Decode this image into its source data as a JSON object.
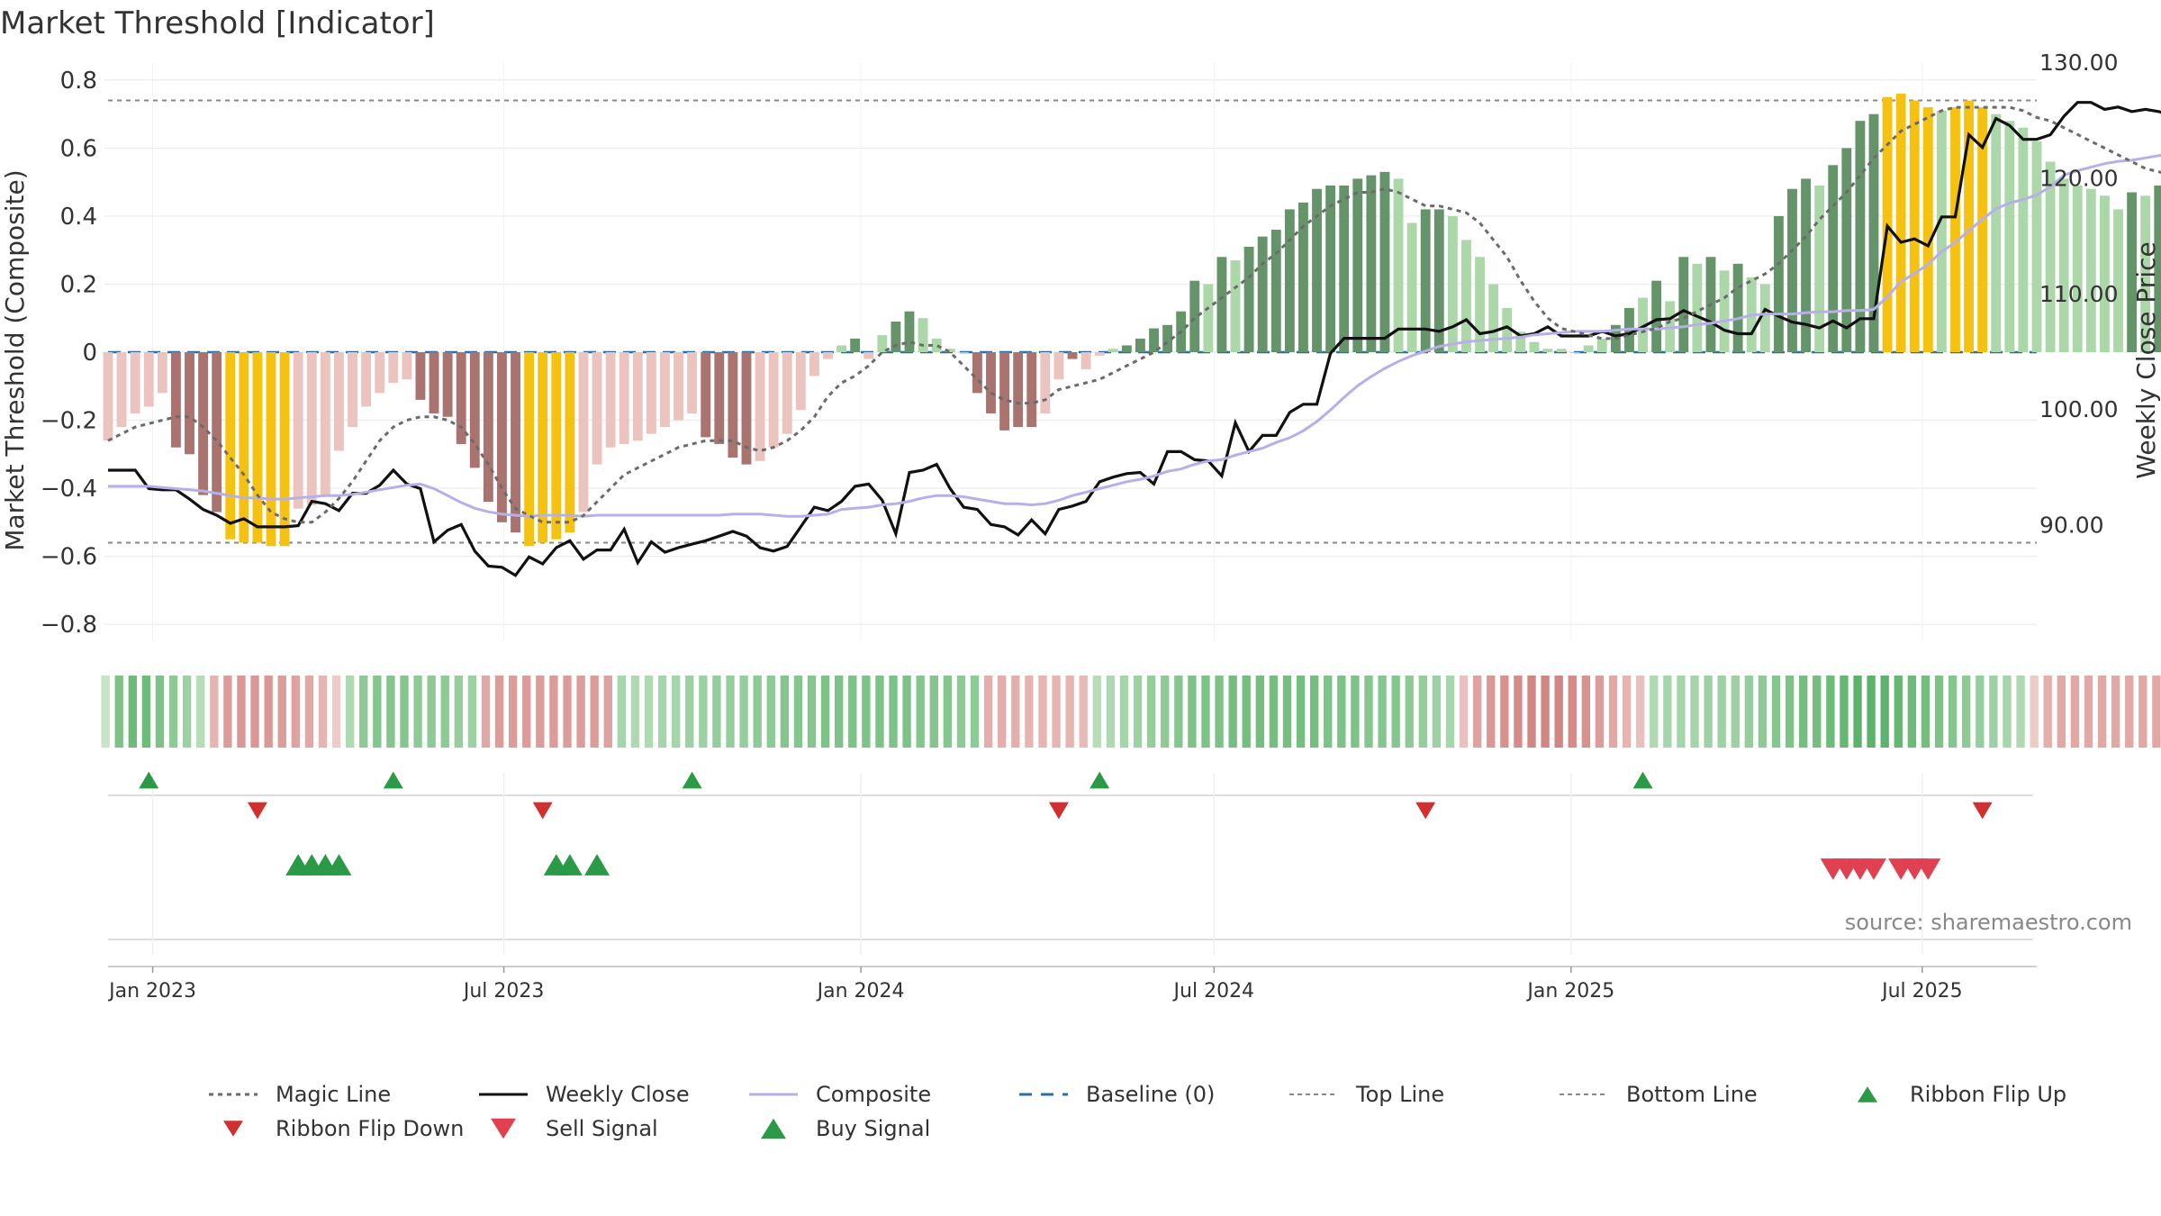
{
  "title": "Market Threshold [Indicator]",
  "source": "source: sharemaestro.com",
  "colors": {
    "bar_red_dark": "#a97370",
    "bar_red_light": "#ebc3bf",
    "bar_green_dark": "#66946a",
    "bar_green_light": "#acd7a9",
    "bar_gold": "#f5c211",
    "close": "#111111",
    "composite": "#b7b0e8",
    "magic": "#6b6b6b",
    "baseline": "#2c6fa4",
    "ref_line": "#888888",
    "up_marker": "#2a9a46",
    "down_marker": "#d03030"
  },
  "chart_data": {
    "type": "bar",
    "title": "Market Threshold [Indicator]",
    "ylabel_left": "Market Threshold (Composite)",
    "ylabel_right": "Weekly Close Price",
    "ylim_left": [
      -0.85,
      0.85
    ],
    "ylim_right": [
      80,
      130
    ],
    "yticks_left": [
      "0.8",
      "0.6",
      "0.4",
      "0.2",
      "0",
      "−0.2",
      "−0.4",
      "−0.6",
      "−0.8"
    ],
    "yticks_right": [
      "130.00",
      "120.00",
      "110.00",
      "100.00",
      "90.00"
    ],
    "x_start": "2022-12-09",
    "x_end": "2025-08-29",
    "xticks": [
      {
        "date": "2023-01-01",
        "label": "Jan 2023"
      },
      {
        "date": "2023-07-01",
        "label": "Jul 2023"
      },
      {
        "date": "2024-01-01",
        "label": "Jan 2024"
      },
      {
        "date": "2024-07-01",
        "label": "Jul 2024"
      },
      {
        "date": "2025-01-01",
        "label": "Jan 2025"
      },
      {
        "date": "2025-07-01",
        "label": "Jul 2025"
      }
    ],
    "top_line": 0.74,
    "bottom_line": -0.56,
    "bars": {
      "values": [
        -0.26,
        -0.22,
        -0.18,
        -0.16,
        -0.12,
        -0.28,
        -0.3,
        -0.42,
        -0.47,
        -0.55,
        -0.56,
        -0.56,
        -0.57,
        -0.57,
        -0.46,
        -0.45,
        -0.42,
        -0.29,
        -0.22,
        -0.16,
        -0.12,
        -0.09,
        -0.08,
        -0.14,
        -0.18,
        -0.19,
        -0.27,
        -0.34,
        -0.44,
        -0.5,
        -0.53,
        -0.57,
        -0.56,
        -0.55,
        -0.53,
        -0.47,
        -0.33,
        -0.28,
        -0.27,
        -0.26,
        -0.24,
        -0.22,
        -0.2,
        -0.18,
        -0.25,
        -0.27,
        -0.31,
        -0.33,
        -0.32,
        -0.28,
        -0.24,
        -0.17,
        -0.07,
        -0.02,
        0.02,
        0.04,
        -0.02,
        0.05,
        0.09,
        0.12,
        0.1,
        0.04,
        0.01,
        0.0,
        -0.12,
        -0.18,
        -0.23,
        -0.22,
        -0.22,
        -0.18,
        -0.08,
        -0.02,
        -0.05,
        -0.01,
        0.01,
        0.02,
        0.04,
        0.07,
        0.08,
        0.12,
        0.21,
        0.2,
        0.28,
        0.27,
        0.31,
        0.34,
        0.36,
        0.42,
        0.44,
        0.48,
        0.49,
        0.49,
        0.51,
        0.52,
        0.53,
        0.51,
        0.38,
        0.42,
        0.42,
        0.4,
        0.33,
        0.28,
        0.2,
        0.13,
        0.06,
        0.03,
        0.01,
        0.01,
        0.0,
        0.02,
        0.04,
        0.08,
        0.13,
        0.16,
        0.21,
        0.15,
        0.28,
        0.26,
        0.28,
        0.24,
        0.26,
        0.22,
        0.2,
        0.4,
        0.48,
        0.51,
        0.49,
        0.55,
        0.6,
        0.68,
        0.7,
        0.75,
        0.76,
        0.74,
        0.72,
        0.71,
        0.72,
        0.74,
        0.72,
        0.7,
        0.68,
        0.66,
        0.62,
        0.56,
        0.51,
        0.49,
        0.48,
        0.46,
        0.42,
        0.47,
        0.46,
        0.49,
        0.51
      ],
      "shades": [
        "l",
        "l",
        "l",
        "l",
        "l",
        "d",
        "d",
        "d",
        "d",
        "g",
        "g",
        "g",
        "g",
        "g",
        "l",
        "l",
        "l",
        "l",
        "l",
        "l",
        "l",
        "l",
        "l",
        "d",
        "d",
        "d",
        "d",
        "d",
        "d",
        "d",
        "d",
        "g",
        "g",
        "g",
        "g",
        "l",
        "l",
        "l",
        "l",
        "l",
        "l",
        "l",
        "l",
        "l",
        "d",
        "d",
        "d",
        "d",
        "l",
        "l",
        "l",
        "l",
        "l",
        "l",
        "l",
        "d",
        "l",
        "l",
        "d",
        "d",
        "l",
        "l",
        "l",
        "l",
        "d",
        "d",
        "d",
        "d",
        "d",
        "l",
        "l",
        "d",
        "l",
        "l",
        "l",
        "d",
        "d",
        "d",
        "d",
        "d",
        "d",
        "l",
        "d",
        "l",
        "d",
        "d",
        "d",
        "d",
        "d",
        "d",
        "d",
        "d",
        "d",
        "d",
        "d",
        "l",
        "l",
        "d",
        "d",
        "l",
        "l",
        "l",
        "l",
        "l",
        "l",
        "l",
        "l",
        "l",
        "l",
        "l",
        "l",
        "d",
        "d",
        "l",
        "d",
        "l",
        "d",
        "l",
        "d",
        "l",
        "d",
        "l",
        "l",
        "d",
        "d",
        "d",
        "l",
        "d",
        "d",
        "d",
        "d",
        "g",
        "g",
        "g",
        "g",
        "l",
        "g",
        "g",
        "g",
        "l",
        "l",
        "l",
        "l",
        "l",
        "l",
        "l",
        "l",
        "l",
        "l",
        "d",
        "l",
        "d",
        "d"
      ]
    },
    "series": [
      {
        "name": "Weekly Close",
        "axis": "right",
        "values": [
          94.8,
          94.8,
          94.8,
          93.2,
          93.1,
          93.1,
          92.3,
          91.4,
          90.9,
          90.2,
          90.6,
          89.9,
          89.9,
          89.9,
          90.0,
          92.1,
          91.9,
          91.3,
          92.8,
          92.8,
          93.5,
          94.8,
          93.6,
          93.2,
          88.6,
          89.6,
          90.1,
          87.8,
          86.5,
          86.4,
          85.7,
          87.3,
          86.7,
          88.1,
          88.7,
          87.1,
          87.9,
          87.9,
          89.7,
          86.8,
          88.6,
          87.7,
          88.1,
          88.4,
          88.7,
          89.1,
          89.5,
          89.1,
          88.1,
          87.8,
          88.2,
          89.9,
          91.6,
          91.3,
          92.1,
          93.4,
          93.6,
          92.2,
          89.3,
          94.6,
          94.8,
          95.3,
          93.2,
          91.6,
          91.4,
          90.1,
          89.9,
          89.2,
          90.5,
          89.3,
          91.4,
          91.7,
          92.1,
          93.8,
          94.2,
          94.5,
          94.6,
          93.6,
          96.4,
          96.4,
          95.7,
          95.6,
          94.3,
          98.9,
          96.4,
          97.8,
          97.8,
          99.8,
          100.5,
          100.5,
          104.9,
          106.2,
          106.2,
          106.2,
          106.2,
          107.0,
          107.0,
          107.0,
          106.8,
          107.2,
          107.8,
          106.6,
          106.8,
          107.2,
          106.4,
          106.6,
          107.2,
          106.4,
          106.4,
          106.4,
          106.8,
          106.4,
          106.6,
          107.2,
          107.8,
          107.9,
          108.6,
          108.1,
          107.6,
          106.9,
          106.6,
          106.6,
          108.7,
          108.1,
          107.6,
          107.4,
          107.1,
          107.7,
          107.1,
          107.9,
          107.9,
          115.9,
          114.5,
          114.8,
          114.2,
          116.7,
          116.7,
          123.8,
          122.7,
          125.2,
          124.6,
          123.4,
          123.4,
          123.8,
          125.4,
          126.6,
          126.6,
          126.0,
          126.2,
          125.8,
          126.0,
          125.8,
          125.4,
          125.8,
          126.2,
          126.0,
          127.9,
          126.0,
          127.6,
          128.0
        ]
      },
      {
        "name": "Composite",
        "axis": "right",
        "values": [
          93.4,
          93.4,
          93.4,
          93.4,
          93.3,
          93.2,
          93.1,
          93.0,
          92.8,
          92.6,
          92.4,
          92.4,
          92.3,
          92.3,
          92.4,
          92.5,
          92.6,
          92.6,
          92.7,
          92.9,
          93.1,
          93.3,
          93.5,
          93.6,
          93.2,
          92.6,
          92.0,
          91.5,
          91.2,
          91.0,
          90.9,
          90.8,
          90.9,
          90.9,
          90.9,
          90.8,
          90.9,
          90.9,
          90.9,
          90.9,
          90.9,
          90.9,
          90.9,
          90.9,
          90.9,
          90.9,
          91.0,
          91.0,
          91.0,
          90.9,
          90.8,
          90.8,
          90.9,
          91.0,
          91.4,
          91.5,
          91.6,
          91.8,
          91.9,
          92.1,
          92.4,
          92.6,
          92.6,
          92.5,
          92.3,
          92.1,
          91.9,
          91.9,
          91.8,
          91.9,
          92.2,
          92.6,
          92.9,
          93.2,
          93.5,
          93.8,
          94.0,
          94.3,
          94.7,
          94.9,
          95.3,
          95.6,
          95.7,
          96.1,
          96.4,
          96.7,
          97.2,
          97.6,
          98.2,
          99.0,
          100.0,
          101.1,
          102.1,
          102.9,
          103.6,
          104.2,
          104.7,
          105.1,
          105.5,
          105.7,
          105.9,
          106.0,
          106.1,
          106.2,
          106.3,
          106.5,
          106.6,
          106.7,
          106.8,
          106.8,
          106.8,
          106.9,
          107.0,
          107.0,
          107.0,
          107.1,
          107.2,
          107.4,
          107.5,
          107.7,
          107.9,
          108.2,
          108.3,
          108.3,
          108.3,
          108.4,
          108.5,
          108.5,
          108.6,
          108.6,
          108.7,
          109.8,
          111.1,
          111.8,
          112.6,
          113.7,
          114.5,
          115.5,
          116.5,
          117.4,
          117.9,
          118.2,
          118.6,
          119.3,
          120.3,
          120.7,
          121.0,
          121.3,
          121.5,
          121.6,
          121.8,
          122.0,
          122.2,
          122.5,
          122.8,
          123.1,
          123.3,
          123.8,
          124.2
        ]
      },
      {
        "name": "Magic Line",
        "axis": "left",
        "values": [
          -0.26,
          -0.24,
          -0.22,
          -0.21,
          -0.2,
          -0.19,
          -0.19,
          -0.22,
          -0.26,
          -0.31,
          -0.36,
          -0.42,
          -0.47,
          -0.49,
          -0.5,
          -0.5,
          -0.47,
          -0.43,
          -0.38,
          -0.32,
          -0.26,
          -0.22,
          -0.2,
          -0.19,
          -0.19,
          -0.2,
          -0.22,
          -0.27,
          -0.33,
          -0.4,
          -0.46,
          -0.48,
          -0.5,
          -0.5,
          -0.5,
          -0.48,
          -0.44,
          -0.4,
          -0.36,
          -0.34,
          -0.32,
          -0.3,
          -0.28,
          -0.27,
          -0.26,
          -0.26,
          -0.26,
          -0.28,
          -0.29,
          -0.28,
          -0.26,
          -0.23,
          -0.19,
          -0.13,
          -0.09,
          -0.07,
          -0.04,
          0.0,
          0.02,
          0.03,
          0.02,
          0.02,
          0.0,
          -0.04,
          -0.08,
          -0.12,
          -0.14,
          -0.15,
          -0.15,
          -0.14,
          -0.11,
          -0.1,
          -0.09,
          -0.08,
          -0.06,
          -0.04,
          -0.02,
          0.0,
          0.03,
          0.06,
          0.1,
          0.13,
          0.16,
          0.19,
          0.22,
          0.26,
          0.29,
          0.33,
          0.37,
          0.4,
          0.43,
          0.45,
          0.47,
          0.47,
          0.48,
          0.47,
          0.45,
          0.43,
          0.43,
          0.42,
          0.41,
          0.38,
          0.33,
          0.28,
          0.21,
          0.15,
          0.1,
          0.07,
          0.06,
          0.05,
          0.04,
          0.04,
          0.05,
          0.06,
          0.07,
          0.09,
          0.1,
          0.12,
          0.14,
          0.16,
          0.19,
          0.21,
          0.23,
          0.26,
          0.3,
          0.34,
          0.39,
          0.43,
          0.47,
          0.52,
          0.57,
          0.61,
          0.65,
          0.67,
          0.69,
          0.71,
          0.72,
          0.72,
          0.72,
          0.72,
          0.72,
          0.71,
          0.69,
          0.68,
          0.66,
          0.64,
          0.62,
          0.6,
          0.58,
          0.56,
          0.54,
          0.53,
          0.52,
          0.51,
          0.5
        ]
      }
    ],
    "ribbon": [
      0.1,
      0.55,
      0.65,
      0.65,
      0.55,
      0.45,
      0.35,
      0.2,
      -0.3,
      -0.5,
      -0.55,
      -0.55,
      -0.55,
      -0.5,
      -0.45,
      -0.4,
      -0.3,
      -0.1,
      0.25,
      0.45,
      0.5,
      0.5,
      0.5,
      0.45,
      0.45,
      0.45,
      0.4,
      0.35,
      -0.4,
      -0.5,
      -0.5,
      -0.5,
      -0.5,
      -0.5,
      -0.5,
      -0.5,
      -0.5,
      -0.45,
      0.3,
      0.25,
      0.25,
      0.3,
      0.3,
      0.35,
      0.35,
      0.4,
      0.4,
      0.4,
      0.45,
      0.45,
      0.5,
      0.5,
      0.5,
      0.55,
      0.55,
      0.55,
      0.55,
      0.55,
      0.55,
      0.55,
      0.5,
      0.5,
      0.5,
      0.45,
      0.45,
      -0.35,
      -0.35,
      -0.35,
      -0.3,
      -0.3,
      -0.3,
      -0.3,
      -0.25,
      0.2,
      0.25,
      0.3,
      0.35,
      0.4,
      0.45,
      0.5,
      0.55,
      0.55,
      0.55,
      0.6,
      0.6,
      0.6,
      0.6,
      0.6,
      0.6,
      0.6,
      0.55,
      0.55,
      0.55,
      0.5,
      0.5,
      0.5,
      0.45,
      0.4,
      0.35,
      0.3,
      -0.2,
      -0.45,
      -0.55,
      -0.6,
      -0.65,
      -0.7,
      -0.7,
      -0.7,
      -0.65,
      -0.6,
      -0.5,
      -0.4,
      -0.3,
      -0.2,
      0.25,
      0.3,
      0.3,
      0.3,
      0.35,
      0.35,
      0.35,
      0.4,
      0.45,
      0.5,
      0.55,
      0.6,
      0.6,
      0.65,
      0.7,
      0.75,
      0.75,
      0.75,
      0.7,
      0.65,
      0.6,
      0.55,
      0.5,
      0.45,
      0.4,
      0.35,
      0.3,
      0.25,
      -0.1,
      -0.35,
      -0.4,
      -0.4,
      -0.4,
      -0.4,
      -0.4,
      -0.4,
      -0.4,
      -0.4,
      -0.4,
      -0.35,
      -0.35
    ],
    "ribbon_flip_up": [
      "2022-12-30",
      "2023-05-05",
      "2023-10-06",
      "2024-05-03",
      "2025-02-07"
    ],
    "ribbon_flip_down": [
      "2023-02-24",
      "2023-07-21",
      "2024-04-12",
      "2024-10-18",
      "2025-08-01"
    ],
    "buy_signals": [
      "2023-03-17",
      "2023-03-24",
      "2023-03-31",
      "2023-04-07",
      "2023-07-28",
      "2023-08-04",
      "2023-08-18"
    ],
    "sell_signals": [
      "2025-05-16",
      "2025-05-23",
      "2025-05-30",
      "2025-06-06",
      "2025-06-20",
      "2025-06-27",
      "2025-07-04"
    ]
  },
  "legend": [
    {
      "label": "Magic Line",
      "kind": "dotted-line",
      "color": "#6b6b6b"
    },
    {
      "label": "Weekly Close",
      "kind": "solid-line",
      "color": "#111111"
    },
    {
      "label": "Composite",
      "kind": "solid-line",
      "color": "#b7b0e8"
    },
    {
      "label": "Baseline (0)",
      "kind": "dashed-line",
      "color": "#2c6fa4"
    },
    {
      "label": "Top Line",
      "kind": "fine-dash",
      "color": "#888888"
    },
    {
      "label": "Bottom Line",
      "kind": "fine-dash",
      "color": "#888888"
    },
    {
      "label": "Ribbon Flip Up",
      "kind": "tri-up-small",
      "color": "#2a9a46"
    },
    {
      "label": "Ribbon Flip Down",
      "kind": "tri-down-small",
      "color": "#d03030"
    },
    {
      "label": "Sell Signal",
      "kind": "tri-down-large",
      "color": "#e04050"
    },
    {
      "label": "Buy Signal",
      "kind": "tri-up-large",
      "color": "#2a9a46"
    }
  ]
}
